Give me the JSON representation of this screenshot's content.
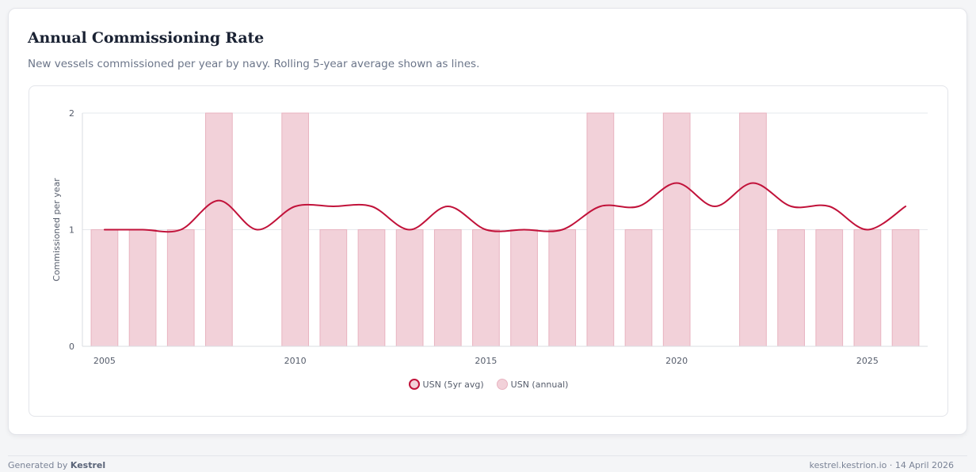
{
  "card": {
    "title": "Annual Commissioning Rate",
    "subtitle": "New vessels commissioned per year by navy. Rolling 5-year average shown as lines."
  },
  "colors": {
    "line": "#c1123a",
    "bar_fill": "#f2d1d9",
    "bar_stroke": "#e8b3c0",
    "grid": "#e6e8ec"
  },
  "chart_data": {
    "type": "bar",
    "ylabel": "Commissioned per year",
    "ylim": [
      0,
      2
    ],
    "y_ticks": [
      "0",
      "1",
      "2"
    ],
    "x_ticks": [
      "2005",
      "2010",
      "2015",
      "2020",
      "2025"
    ],
    "x": [
      2005,
      2006,
      2007,
      2008,
      2009,
      2010,
      2011,
      2012,
      2013,
      2014,
      2015,
      2016,
      2017,
      2018,
      2019,
      2020,
      2021,
      2022,
      2023,
      2024,
      2025,
      2026
    ],
    "series": [
      {
        "name": "USN (annual)",
        "kind": "bar",
        "values": [
          1,
          1,
          1,
          2,
          0,
          2,
          1,
          1,
          1,
          1,
          1,
          1,
          1,
          2,
          1,
          2,
          0,
          2,
          1,
          1,
          1,
          1
        ]
      },
      {
        "name": "USN (5yr avg)",
        "kind": "line",
        "values": [
          1,
          1,
          1,
          1.25,
          1,
          1.2,
          1.2,
          1.2,
          1,
          1.2,
          1,
          1,
          1,
          1.2,
          1.2,
          1.4,
          1.2,
          1.4,
          1.2,
          1.2,
          1,
          1.2
        ]
      }
    ],
    "legend": [
      "USN (5yr avg)",
      "USN (annual)"
    ],
    "legend_position": "bottom",
    "grid": true
  },
  "footer": {
    "generated_prefix": "Generated by",
    "brand": "Kestrel",
    "right": "kestrel.kestrion.io · 14 April 2026"
  }
}
